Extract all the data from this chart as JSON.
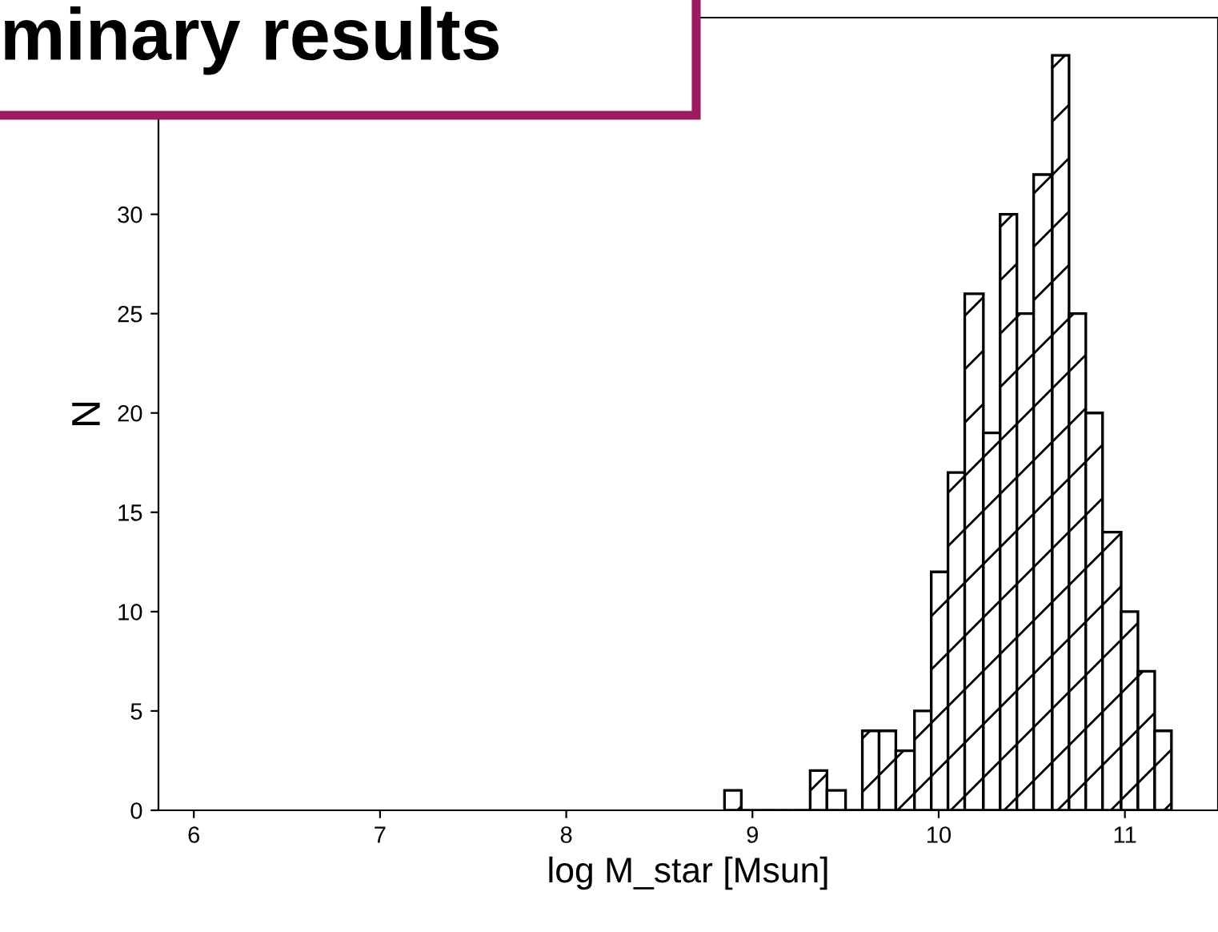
{
  "chart_data": {
    "type": "histogram",
    "title": "minary results",
    "xlabel": "log M_star [Msun]",
    "ylabel": "N",
    "bins": [
      8.85,
      8.94,
      9.04,
      9.13,
      9.22,
      9.31,
      9.4,
      9.5,
      9.59,
      9.68,
      9.77,
      9.87,
      9.96,
      10.05,
      10.14,
      10.24,
      10.33,
      10.42,
      10.51,
      10.61,
      10.7,
      10.79,
      10.88,
      10.98,
      11.07,
      11.16,
      11.25
    ],
    "values": [
      1,
      0,
      0,
      0,
      0,
      2,
      1,
      0,
      4,
      4,
      3,
      5,
      12,
      17,
      26,
      19,
      30,
      25,
      32,
      38,
      25,
      20,
      14,
      10,
      7,
      4
    ],
    "color": "#000000",
    "xlim": [
      5.81,
      11.5
    ],
    "xticks": [
      6,
      7,
      8,
      9,
      10,
      11
    ],
    "ylim": [
      0,
      39.9
    ],
    "yticks": [
      0,
      5,
      10,
      15,
      20,
      25,
      30,
      {
        "value": 35,
        "label": null
      }
    ],
    "grid": false
  }
}
